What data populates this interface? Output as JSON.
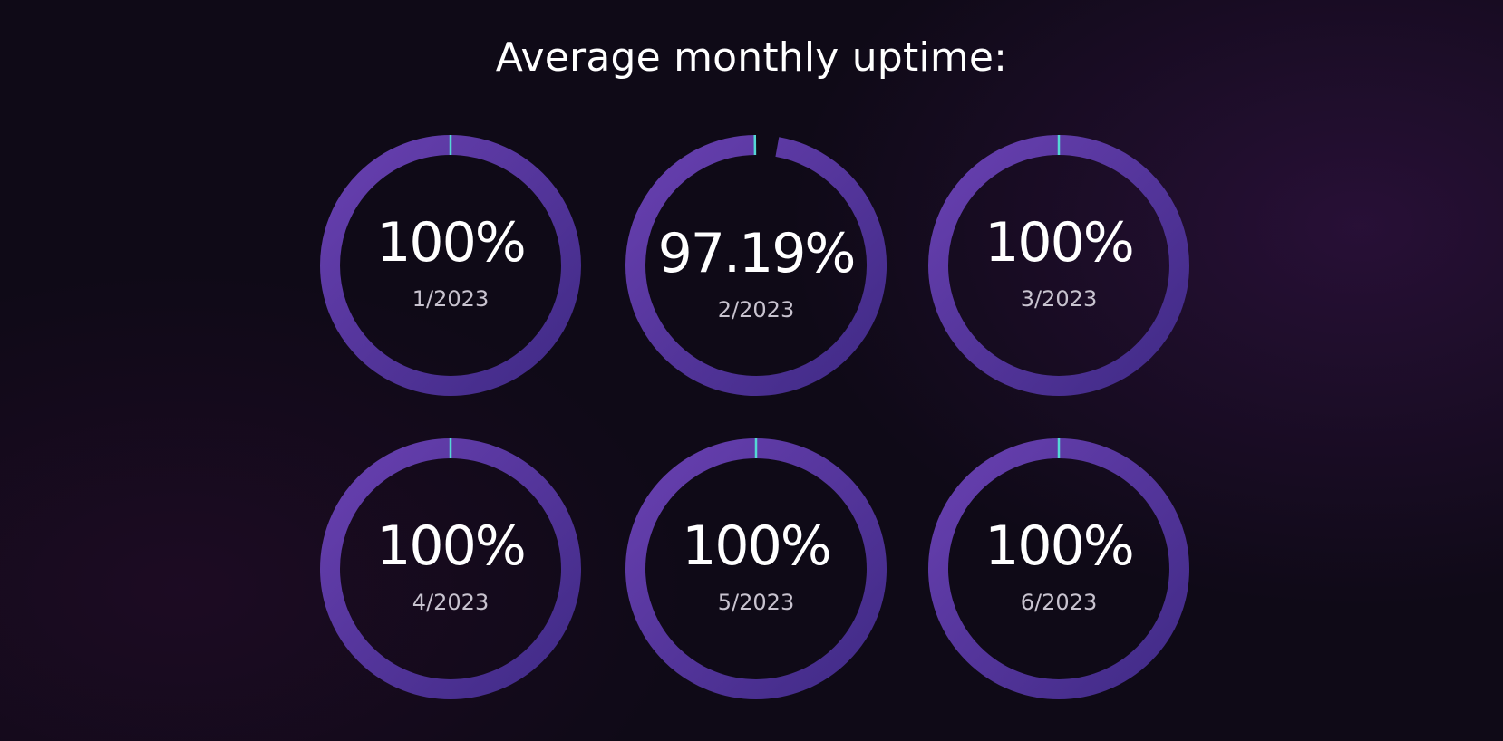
{
  "title": "Average monthly uptime:",
  "colors": {
    "background": "#0f0a17",
    "track": "#402a86",
    "fill": "#6840b0",
    "marker": "#54d8d4"
  },
  "chart_data": {
    "type": "gauge",
    "title": "Average monthly uptime:",
    "max": 100,
    "gauges": [
      {
        "label": "1/2023",
        "value": 100,
        "value_label": "100%"
      },
      {
        "label": "2/2023",
        "value": 97.19,
        "value_label": "97.19%"
      },
      {
        "label": "3/2023",
        "value": 100,
        "value_label": "100%"
      },
      {
        "label": "4/2023",
        "value": 100,
        "value_label": "100%"
      },
      {
        "label": "5/2023",
        "value": 100,
        "value_label": "100%"
      },
      {
        "label": "6/2023",
        "value": 100,
        "value_label": "100%"
      }
    ]
  }
}
